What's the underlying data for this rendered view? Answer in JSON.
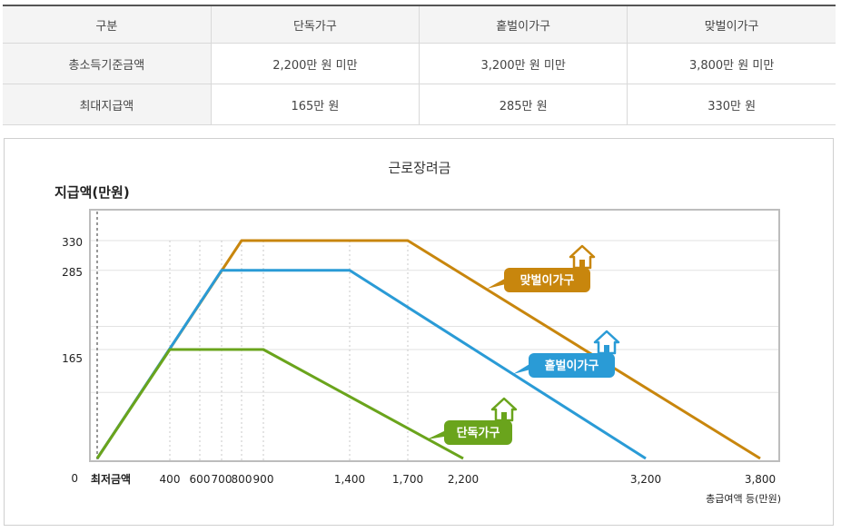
{
  "table": {
    "headers": [
      "구분",
      "단독가구",
      "홑벌이가구",
      "맞벌이가구"
    ],
    "rows": [
      [
        "총소득기준금액",
        "2,200만 원 미만",
        "3,200만 원 미만",
        "3,800만 원 미만"
      ],
      [
        "최대지급액",
        "165만 원",
        "285만 원",
        "330만 원"
      ]
    ]
  },
  "chart_data": {
    "type": "line",
    "title": "근로장려금",
    "ylabel": "지급액(만원)",
    "xlabel": "총급여액 등(만원)",
    "x_ticks": [
      "최저금액",
      "400",
      "600",
      "700",
      "800",
      "900",
      "1,400",
      "1,700",
      "2,200",
      "3,200",
      "3,800"
    ],
    "y_ticks": [
      "0",
      "165",
      "285",
      "330"
    ],
    "series": [
      {
        "name": "맞벌이가구",
        "color": "#c8860d",
        "x": [
          0,
          800,
          1700,
          3800
        ],
        "y": [
          0,
          330,
          330,
          0
        ]
      },
      {
        "name": "홑벌이가구",
        "color": "#2a9bd6",
        "x": [
          0,
          700,
          1400,
          3200
        ],
        "y": [
          0,
          285,
          285,
          0
        ]
      },
      {
        "name": "단독가구",
        "color": "#6aa41c",
        "x": [
          0,
          400,
          900,
          2200
        ],
        "y": [
          0,
          165,
          165,
          0
        ]
      }
    ],
    "grid": true
  }
}
